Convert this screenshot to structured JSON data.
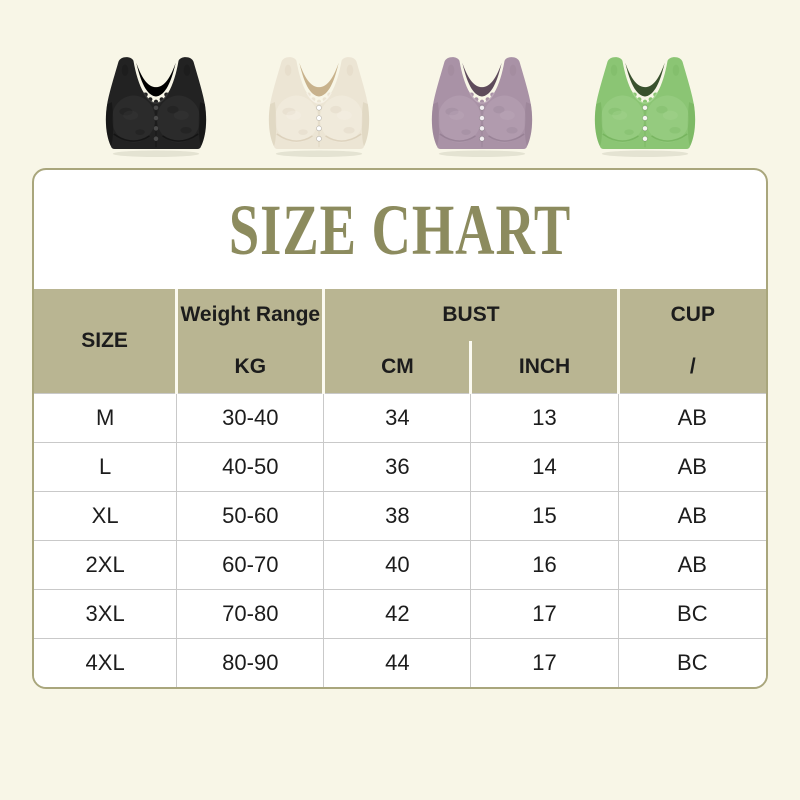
{
  "colors": {
    "page_bg": "#f8f6e7",
    "panel_bg": "#ffffff",
    "header_bg": "#b9b592",
    "title": "#8c8b5e",
    "border": "#a9a67c",
    "grid": "#c9c9c9",
    "text": "#1c1c1c",
    "divider": "#fbfaf1"
  },
  "products": {
    "items": [
      {
        "id": "bra-black",
        "color_name": "Black",
        "colors": {
          "body": "#222222",
          "shade": "#0e0e0e",
          "highlight": "#3c3c3c",
          "inner": "#000000",
          "button": "#4a4a4a"
        }
      },
      {
        "id": "bra-beige",
        "color_name": "Beige",
        "colors": {
          "body": "#ece5d4",
          "shade": "#d5c9b2",
          "highlight": "#f8f3e8",
          "inner": "#c8b28c",
          "button": "#ffffff"
        }
      },
      {
        "id": "bra-purple",
        "color_name": "Purple",
        "colors": {
          "body": "#a992a6",
          "shade": "#907a8e",
          "highlight": "#c0adbd",
          "inner": "#5e4b5b",
          "button": "#f2eef1"
        }
      },
      {
        "id": "bra-green",
        "color_name": "Green",
        "colors": {
          "body": "#8bc574",
          "shade": "#6fae57",
          "highlight": "#a9d895",
          "inner": "#39512d",
          "button": "#f4f7ef"
        }
      }
    ]
  },
  "size_chart": {
    "title": "SIZE CHART",
    "header": {
      "size": "SIZE",
      "weight_range": "Weight Range",
      "kg": "KG",
      "bust": "BUST",
      "cm": "CM",
      "inch": "INCH",
      "cup": "CUP",
      "cup_unit": "/"
    },
    "rows": [
      {
        "size": "M",
        "kg": "30-40",
        "cm": "34",
        "inch": "13",
        "cup": "AB"
      },
      {
        "size": "L",
        "kg": "40-50",
        "cm": "36",
        "inch": "14",
        "cup": "AB"
      },
      {
        "size": "XL",
        "kg": "50-60",
        "cm": "38",
        "inch": "15",
        "cup": "AB"
      },
      {
        "size": "2XL",
        "kg": "60-70",
        "cm": "40",
        "inch": "16",
        "cup": "AB"
      },
      {
        "size": "3XL",
        "kg": "70-80",
        "cm": "42",
        "inch": "17",
        "cup": "BC"
      },
      {
        "size": "4XL",
        "kg": "80-90",
        "cm": "44",
        "inch": "17",
        "cup": "BC"
      }
    ]
  },
  "chart_data": {
    "type": "table",
    "title": "SIZE CHART",
    "columns": [
      "SIZE",
      "Weight Range KG",
      "BUST CM",
      "BUST INCH",
      "CUP /"
    ],
    "rows": [
      [
        "M",
        "30-40",
        "34",
        "13",
        "AB"
      ],
      [
        "L",
        "40-50",
        "36",
        "14",
        "AB"
      ],
      [
        "XL",
        "50-60",
        "38",
        "15",
        "AB"
      ],
      [
        "2XL",
        "60-70",
        "40",
        "16",
        "AB"
      ],
      [
        "3XL",
        "70-80",
        "42",
        "17",
        "BC"
      ],
      [
        "4XL",
        "80-90",
        "44",
        "17",
        "BC"
      ]
    ]
  }
}
